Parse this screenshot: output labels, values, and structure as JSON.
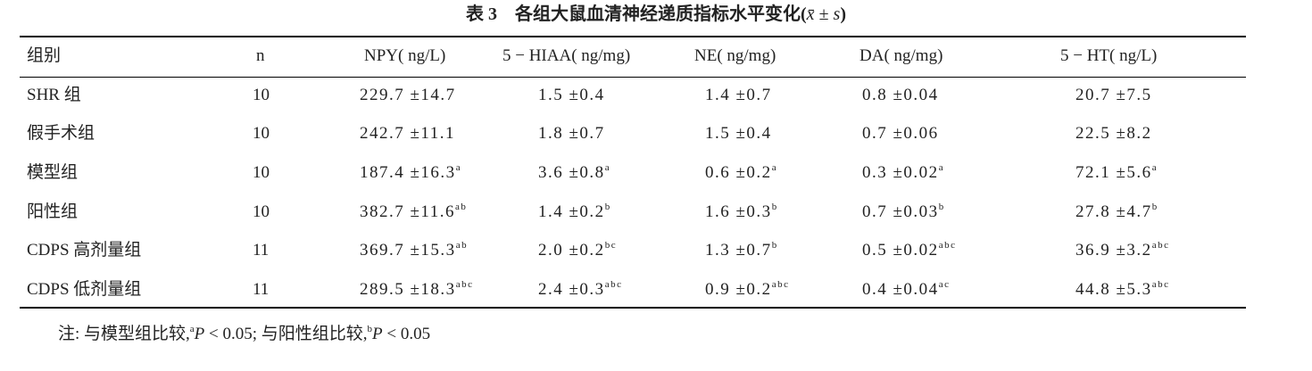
{
  "title": [
    {
      "text": "表 3　各组大鼠血清神经递质指标水平变化(",
      "style": "bold"
    },
    {
      "text": "x̄ ± s",
      "style": "italic"
    },
    {
      "text": ")",
      "style": "bold"
    }
  ],
  "table": {
    "headers": [
      "组别",
      "n",
      "NPY( ng/L)",
      "5 − HIAA( ng/mg)",
      "NE( ng/mg)",
      "DA( ng/mg)",
      "5 − HT( ng/L)"
    ],
    "rows": [
      [
        "SHR 组",
        10,
        "229.7 ±14.7",
        "1.5 ±0.4",
        "1.4 ±0.7",
        "0.8 ±0.04",
        "20.7 ±7.5"
      ],
      [
        "假手术组",
        10,
        "242.7 ±11.1",
        "1.8 ±0.7",
        "1.5 ±0.4",
        "0.7 ±0.06",
        "22.5 ±8.2"
      ],
      [
        "模型组",
        10,
        {
          "text": "187.4 ±16.3",
          "sup": "a"
        },
        {
          "text": "3.6 ±0.8",
          "sup": "a"
        },
        {
          "text": "0.6 ±0.2",
          "sup": "a"
        },
        {
          "text": "0.3 ±0.02",
          "sup": "a"
        },
        {
          "text": "72.1 ±5.6",
          "sup": "a"
        }
      ],
      [
        "阳性组",
        10,
        {
          "text": "382.7 ±11.6",
          "sup": "ab"
        },
        {
          "text": "1.4 ±0.2",
          "sup": "b"
        },
        {
          "text": "1.6 ±0.3",
          "sup": "b"
        },
        {
          "text": "0.7 ±0.03",
          "sup": "b"
        },
        {
          "text": "27.8 ±4.7",
          "sup": "b"
        }
      ],
      [
        "CDPS 高剂量组",
        11,
        {
          "text": "369.7 ±15.3",
          "sup": "ab"
        },
        {
          "text": "2.0 ±0.2",
          "sup": "bc"
        },
        {
          "text": "1.3 ±0.7",
          "sup": "b"
        },
        {
          "text": "0.5 ±0.02",
          "sup": "abc"
        },
        {
          "text": "36.9 ±3.2",
          "sup": "abc"
        }
      ],
      [
        "CDPS 低剂量组",
        11,
        {
          "text": "289.5 ±18.3",
          "sup": "abc"
        },
        {
          "text": "2.4 ±0.3",
          "sup": "abc"
        },
        {
          "text": "0.9 ±0.2",
          "sup": "abc"
        },
        {
          "text": "0.4 ±0.04",
          "sup": "ac"
        },
        {
          "text": "44.8 ±5.3",
          "sup": "abc"
        }
      ]
    ]
  },
  "note": [
    {
      "text": "注: 与模型组比较,",
      "style": "normal"
    },
    {
      "text": "a",
      "style": "sup"
    },
    {
      "text": "P",
      "style": "italic"
    },
    {
      "text": " < 0.05; 与阳性组比较,",
      "style": "normal"
    },
    {
      "text": "b",
      "style": "sup"
    },
    {
      "text": "P",
      "style": "italic"
    },
    {
      "text": " < 0.05",
      "style": "normal"
    }
  ]
}
